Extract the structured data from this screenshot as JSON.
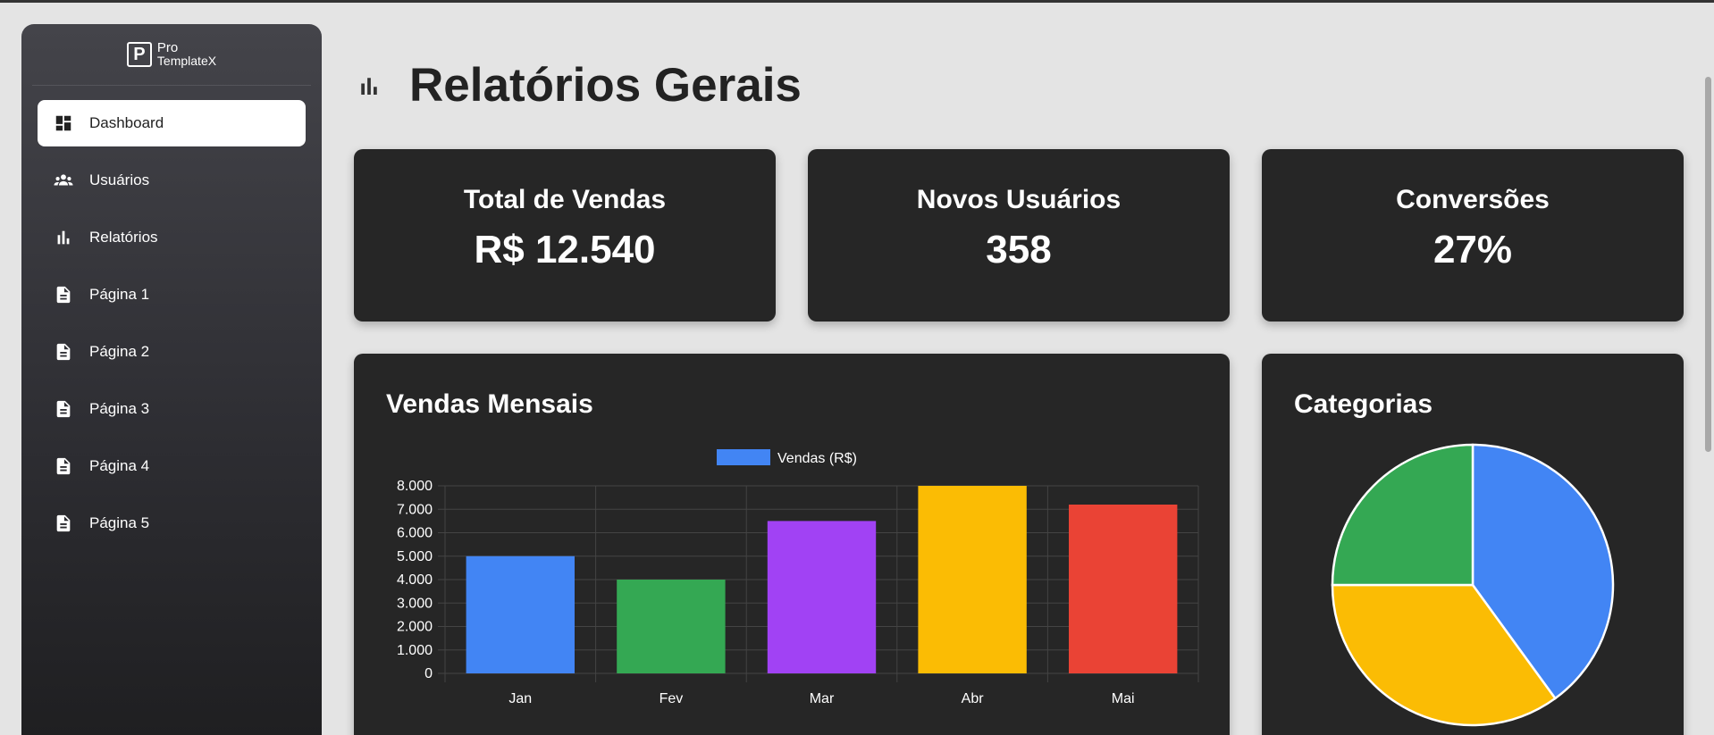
{
  "brand": {
    "logo_letter": "P",
    "line1": "Pro",
    "line2": "TemplateX"
  },
  "sidebar": {
    "items": [
      {
        "label": "Dashboard",
        "icon": "dashboard-icon",
        "active": true
      },
      {
        "label": "Usuários",
        "icon": "users-icon"
      },
      {
        "label": "Relatórios",
        "icon": "bar-chart-icon"
      },
      {
        "label": "Página 1",
        "icon": "document-icon"
      },
      {
        "label": "Página 2",
        "icon": "document-icon"
      },
      {
        "label": "Página 3",
        "icon": "document-icon"
      },
      {
        "label": "Página 4",
        "icon": "document-icon"
      },
      {
        "label": "Página 5",
        "icon": "document-icon"
      }
    ]
  },
  "header": {
    "title": "Relatórios Gerais",
    "icon": "bar-chart-icon"
  },
  "stats": [
    {
      "label": "Total de Vendas",
      "value": "R$ 12.540"
    },
    {
      "label": "Novos Usuários",
      "value": "358"
    },
    {
      "label": "Conversões",
      "value": "27%"
    }
  ],
  "bar_card": {
    "title": "Vendas Mensais"
  },
  "pie_card": {
    "title": "Categorias"
  },
  "chart_data": [
    {
      "type": "bar",
      "title": "Vendas Mensais",
      "categories": [
        "Jan",
        "Fev",
        "Mar",
        "Abr",
        "Mai"
      ],
      "series": [
        {
          "name": "Vendas (R$)",
          "values": [
            5000,
            4000,
            6500,
            8000,
            7200
          ]
        }
      ],
      "colors": [
        "#4285f4",
        "#34a853",
        "#a142f4",
        "#fbbc04",
        "#ea4335"
      ],
      "legend_color": "#4285f4",
      "ylim": [
        0,
        8000
      ],
      "yticks": [
        "0",
        "1.000",
        "2.000",
        "3.000",
        "4.000",
        "5.000",
        "6.000",
        "7.000",
        "8.000"
      ],
      "grid": true,
      "legend": "top-center"
    },
    {
      "type": "pie",
      "title": "Categorias",
      "values": [
        40,
        35,
        25
      ],
      "colors": [
        "#4285f4",
        "#fbbc04",
        "#34a853"
      ],
      "legend": "none"
    }
  ]
}
